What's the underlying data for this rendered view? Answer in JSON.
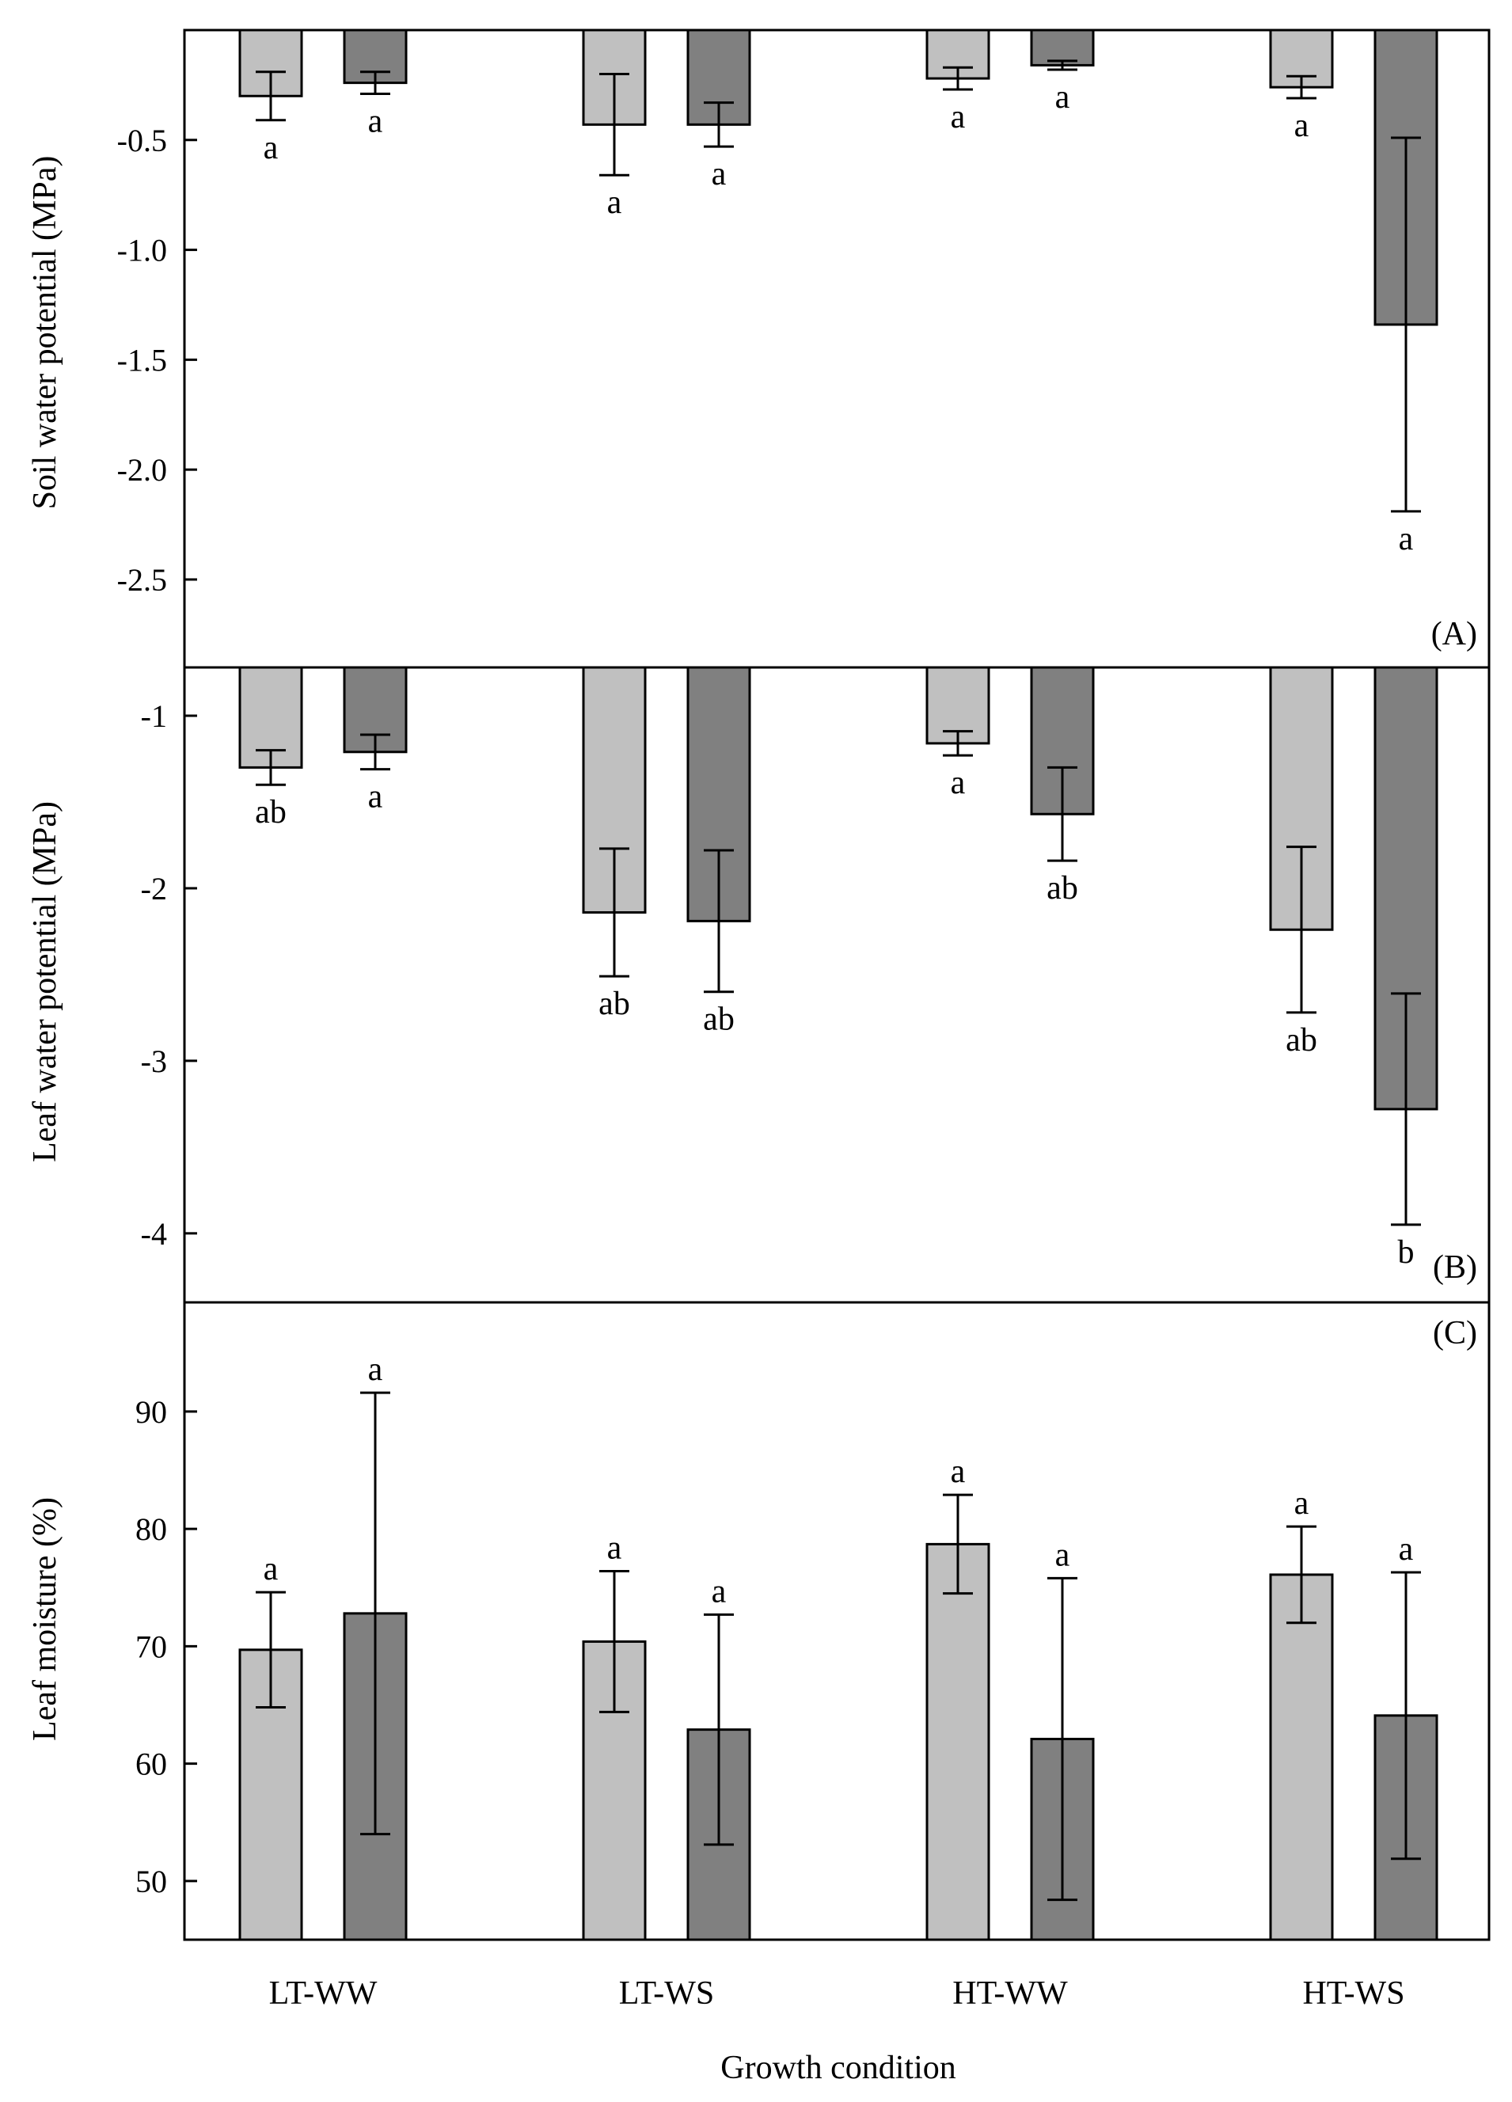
{
  "colors": {
    "light_bar": "#c0c0c0",
    "dark_bar": "#808080",
    "axis": "#000000",
    "background": "#ffffff"
  },
  "xlabel": "Growth condition",
  "categories": [
    "LT-WW",
    "LT-WS",
    "HT-WW",
    "HT-WS"
  ],
  "chart_data": [
    {
      "type": "bar",
      "panel_label": "(A)",
      "ylabel": "Soil water potential (MPa)",
      "categories": [
        "LT-WW",
        "LT-WS",
        "HT-WW",
        "HT-WS"
      ],
      "ylim": [
        -2.9,
        0
      ],
      "yticks": [
        -0.5,
        -1.0,
        -1.5,
        -2.0,
        -2.5
      ],
      "ytick_labels": [
        "-0.5",
        "-1.0",
        "-1.5",
        "-2.0",
        "-2.5"
      ],
      "baseline": 0,
      "series": [
        {
          "color": "#c0c0c0",
          "values": [
            -0.3,
            -0.43,
            -0.22,
            -0.26
          ],
          "errors": [
            0.11,
            0.23,
            0.05,
            0.05
          ],
          "letters": [
            "a",
            "a",
            "a",
            "a"
          ]
        },
        {
          "color": "#808080",
          "values": [
            -0.24,
            -0.43,
            -0.16,
            -1.34
          ],
          "errors": [
            0.05,
            0.1,
            0.02,
            0.85
          ],
          "letters": [
            "a",
            "a",
            "a",
            "a"
          ]
        }
      ]
    },
    {
      "type": "bar",
      "panel_label": "(B)",
      "ylabel": "Leaf water potential (MPa)",
      "categories": [
        "LT-WW",
        "LT-WS",
        "HT-WW",
        "HT-WS"
      ],
      "ylim": [
        -4.4,
        -0.72
      ],
      "yticks": [
        -1,
        -2,
        -3,
        -4
      ],
      "ytick_labels": [
        "-1",
        "-2",
        "-3",
        "-4"
      ],
      "baseline": -0.72,
      "series": [
        {
          "color": "#c0c0c0",
          "values": [
            -1.3,
            -2.14,
            -1.16,
            -2.24
          ],
          "errors": [
            0.1,
            0.37,
            0.07,
            0.48
          ],
          "letters": [
            "ab",
            "ab",
            "a",
            "ab"
          ]
        },
        {
          "color": "#808080",
          "values": [
            -1.21,
            -2.19,
            -1.57,
            -3.28
          ],
          "errors": [
            0.1,
            0.41,
            0.27,
            0.67
          ],
          "letters": [
            "a",
            "ab",
            "ab",
            "b"
          ]
        }
      ]
    },
    {
      "type": "bar",
      "panel_label": "(C)",
      "ylabel": "Leaf moisture (%)",
      "categories": [
        "LT-WW",
        "LT-WS",
        "HT-WW",
        "HT-WS"
      ],
      "ylim": [
        45,
        99.3
      ],
      "yticks": [
        50,
        60,
        70,
        80,
        90
      ],
      "ytick_labels": [
        "50",
        "60",
        "70",
        "80",
        "90"
      ],
      "baseline": 45,
      "series": [
        {
          "color": "#c0c0c0",
          "values": [
            69.7,
            70.4,
            78.7,
            76.1
          ],
          "errors": [
            4.9,
            6.0,
            4.2,
            4.1
          ],
          "letters": [
            "a",
            "a",
            "a",
            "a"
          ]
        },
        {
          "color": "#808080",
          "values": [
            72.8,
            62.9,
            62.1,
            64.1
          ],
          "errors": [
            18.8,
            9.8,
            13.7,
            12.2
          ],
          "letters": [
            "a",
            "a",
            "a",
            "a"
          ]
        }
      ]
    }
  ]
}
